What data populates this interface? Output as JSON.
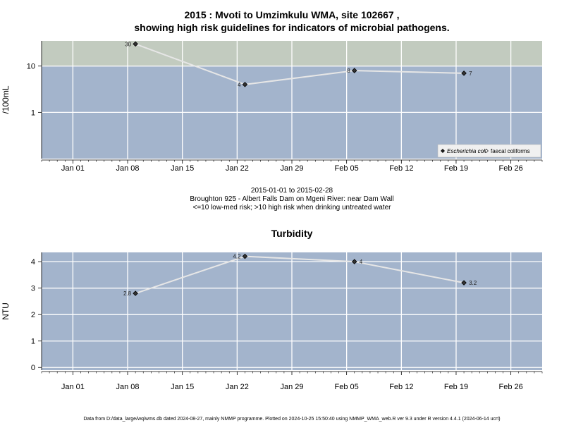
{
  "page": {
    "title_line1": "2015 : Mvoti to Umzimkulu WMA, site 102667 ,",
    "title_line2": "showing high risk guidelines for indicators of microbial pathogens.",
    "caption_line1": "2015-01-01 to 2015-02-28",
    "caption_line2": "Broughton 925 - Albert Falls Dam on Mgeni River: near Dam Wall",
    "caption_line3": "<=10 low-med risk; >10 high risk when drinking untreated water",
    "footer": "Data from D:/data_large/wq/wms.db dated 2024-08-27, mainly NMMP programme. Plotted on 2024-10-25 15:50:40 using NMMP_WMA_web.R ver 9.3 under R version 4.4.1 (2024-06-14 ucrt)"
  },
  "colors": {
    "plot_bg": "#a3b4cc",
    "high_risk_band": "#c2cbbf",
    "grid": "#ffffff",
    "line": "#e6e6e6",
    "point": "#333333"
  },
  "chart_data": [
    {
      "type": "line",
      "title": "",
      "xlabel": "",
      "ylabel": "/100mL",
      "yscale": "log",
      "ylim": [
        0.1,
        35
      ],
      "xlim": [
        "2014-12-28",
        "2015-03-02"
      ],
      "yticks": [
        1,
        10
      ],
      "ytick_labels": [
        "1",
        "10"
      ],
      "xticks": [
        "2015-01-01",
        "2015-01-08",
        "2015-01-15",
        "2015-01-22",
        "2015-01-29",
        "2015-02-05",
        "2015-02-12",
        "2015-02-19",
        "2015-02-26"
      ],
      "xtick_labels": [
        "Jan 01",
        "Jan 08",
        "Jan 15",
        "Jan 22",
        "Jan 29",
        "Feb 05",
        "Feb 12",
        "Feb 19",
        "Feb 26"
      ],
      "grid": true,
      "threshold": {
        "value": 10,
        "band": "above"
      },
      "legend": {
        "position": "bottom-right",
        "entries": [
          {
            "label": "Escherichia coli",
            "italic": true,
            "marker": "filled-diamond"
          },
          {
            "label": "faecal coliforms",
            "italic": false,
            "marker": "open-diamond"
          }
        ]
      },
      "series": [
        {
          "name": "Escherichia coli",
          "x": [
            "2015-01-09",
            "2015-01-23",
            "2015-02-06",
            "2015-02-20"
          ],
          "y": [
            30,
            4,
            8,
            7
          ],
          "labels": [
            "30",
            "4",
            "8",
            "7"
          ],
          "label_side": [
            "left",
            "left",
            "left",
            "right"
          ]
        }
      ]
    },
    {
      "type": "line",
      "title": "Turbidity",
      "xlabel": "",
      "ylabel": "NTU",
      "yscale": "linear",
      "ylim": [
        -0.1,
        4.35
      ],
      "xlim": [
        "2014-12-28",
        "2015-03-02"
      ],
      "yticks": [
        0,
        1,
        2,
        3,
        4
      ],
      "ytick_labels": [
        "0",
        "1",
        "2",
        "3",
        "4"
      ],
      "xticks": [
        "2015-01-01",
        "2015-01-08",
        "2015-01-15",
        "2015-01-22",
        "2015-01-29",
        "2015-02-05",
        "2015-02-12",
        "2015-02-19",
        "2015-02-26"
      ],
      "xtick_labels": [
        "Jan 01",
        "Jan 08",
        "Jan 15",
        "Jan 22",
        "Jan 29",
        "Feb 05",
        "Feb 12",
        "Feb 19",
        "Feb 26"
      ],
      "grid": true,
      "series": [
        {
          "name": "",
          "x": [
            "2015-01-09",
            "2015-01-23",
            "2015-02-06",
            "2015-02-20"
          ],
          "y": [
            2.8,
            4.2,
            4,
            3.2
          ],
          "labels": [
            "2.8",
            "4.2",
            "4",
            "3.2"
          ],
          "label_side": [
            "left",
            "left",
            "right",
            "right"
          ]
        }
      ]
    }
  ]
}
